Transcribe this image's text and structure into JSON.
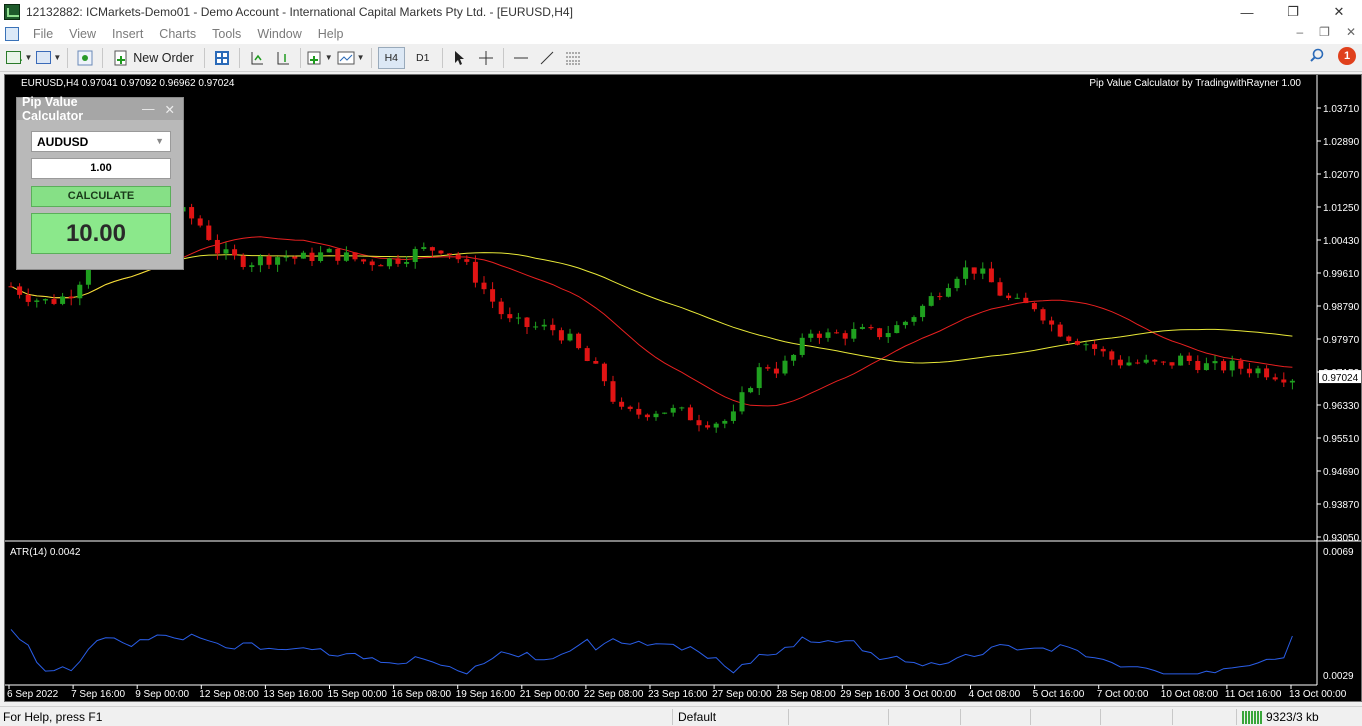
{
  "window": {
    "title": "12132882: ICMarkets-Demo01 - Demo Account - International Capital Markets Pty Ltd. - [EURUSD,H4]",
    "minimize": "—",
    "restore": "❐",
    "close": "✕"
  },
  "menu": {
    "items": [
      "File",
      "View",
      "Insert",
      "Charts",
      "Tools",
      "Window",
      "Help"
    ],
    "mdi_minimize": "–",
    "mdi_restore": "❐",
    "mdi_close": "✕"
  },
  "toolbar": {
    "new_order": "New Order",
    "tf_h4": "H4",
    "tf_d1": "D1",
    "notifications": "1"
  },
  "chart": {
    "symbol_info": "EURUSD,H4  0.97041 0.97092 0.96962 0.97024",
    "indicator_label": "Pip Value Calculator by TradingwithRayner 1.00",
    "current_price": "0.97024",
    "atr_label": "ATR(14) 0.0042",
    "atr_top": "0.0069",
    "atr_bottom": "0.0029",
    "price_ticks": [
      "1.03710",
      "1.02890",
      "1.02070",
      "1.01250",
      "1.00430",
      "0.99610",
      "0.98790",
      "0.97970",
      "0.97150",
      "0.96330",
      "0.95510",
      "0.94690",
      "0.93870",
      "0.93050"
    ],
    "time_ticks": [
      "6 Sep 2022",
      "7 Sep 16:00",
      "9 Sep 00:00",
      "12 Sep 08:00",
      "13 Sep 16:00",
      "15 Sep 00:00",
      "16 Sep 08:00",
      "19 Sep 16:00",
      "21 Sep 00:00",
      "22 Sep 08:00",
      "23 Sep 16:00",
      "27 Sep 00:00",
      "28 Sep 08:00",
      "29 Sep 16:00",
      "3 Oct 00:00",
      "4 Oct 08:00",
      "5 Oct 16:00",
      "7 Oct 00:00",
      "10 Oct 08:00",
      "11 Oct 16:00",
      "13 Oct 00:00"
    ],
    "colors": {
      "bull": "#1fa01f",
      "bear": "#e01414",
      "ma_fast": "#e82020",
      "ma_slow": "#e8e838",
      "atr_line": "#2a5ee8",
      "background": "#000000"
    }
  },
  "chart_data": {
    "type": "candlestick",
    "symbol": "EURUSD",
    "timeframe": "H4",
    "ylim": [
      0.9305,
      1.0371
    ],
    "close_path": [
      0.9928,
      0.9905,
      0.989,
      0.9895,
      0.992,
      1.0005,
      1.004,
      1.002,
      1.006,
      1.011,
      1.012,
      1.0105,
      1.0075,
      1.001,
      0.9995,
      0.999,
      0.9998,
      1.0005,
      0.9995,
      1.0005,
      1.001,
      1.0,
      0.999,
      0.999,
      0.9995,
      1.001,
      1.002,
      1.0025,
      0.9995,
      0.995,
      0.9895,
      0.984,
      0.983,
      0.9825,
      0.982,
      0.979,
      0.974,
      0.97,
      0.9615,
      0.961,
      0.962,
      0.962,
      0.9612,
      0.9595,
      0.9592,
      0.9595,
      0.968,
      0.9735,
      0.972,
      0.976,
      0.982,
      0.9805,
      0.981,
      0.9815,
      0.9808,
      0.982,
      0.9845,
      0.988,
      0.992,
      0.996,
      0.9975,
      0.9945,
      0.99,
      0.988,
      0.988,
      0.983,
      0.9805,
      0.979,
      0.9765,
      0.974,
      0.974,
      0.9735,
      0.973,
      0.9748,
      0.9738,
      0.9725,
      0.973,
      0.9725,
      0.972,
      0.971,
      0.9702
    ],
    "atr_ylim": [
      0.0029,
      0.0069
    ],
    "atr_last": 0.0042
  },
  "pip_calculator": {
    "title": "Pip Value Calculator",
    "symbol": "AUDUSD",
    "lots": "1.00",
    "button": "CALCULATE",
    "result": "10.00",
    "min_btn": "—",
    "close_btn": "✕"
  },
  "status": {
    "help": "For Help, press F1",
    "profile": "Default",
    "traffic": "9323/3 kb"
  }
}
